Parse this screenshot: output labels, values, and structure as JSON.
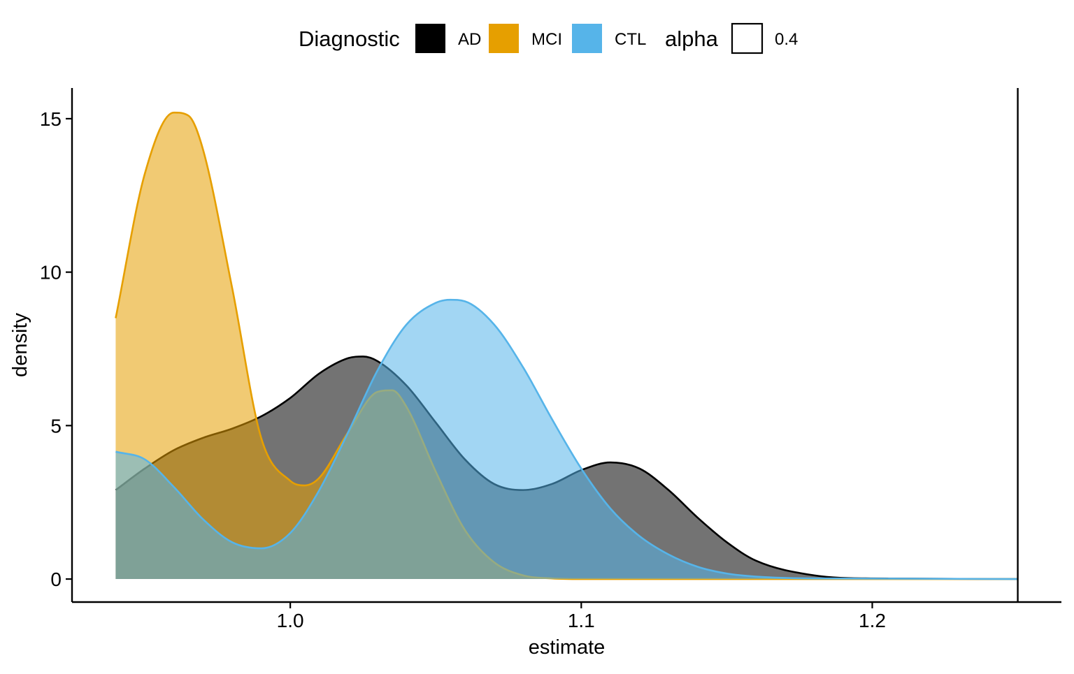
{
  "chart_data": {
    "type": "area",
    "xlabel": "estimate",
    "ylabel": "density",
    "xlim": [
      0.925,
      1.265
    ],
    "ylim": [
      -0.75,
      16.0
    ],
    "x_ticks": [
      {
        "value": 1.0,
        "label": "1.0"
      },
      {
        "value": 1.1,
        "label": "1.1"
      },
      {
        "value": 1.2,
        "label": "1.2"
      }
    ],
    "y_ticks": [
      {
        "value": 0,
        "label": "0"
      },
      {
        "value": 5,
        "label": "5"
      },
      {
        "value": 10,
        "label": "10"
      },
      {
        "value": 15,
        "label": "15"
      }
    ],
    "vline": 1.25,
    "legend": {
      "position": "top",
      "groups": [
        {
          "title": "Diagnostic",
          "items": [
            {
              "label": "AD",
              "color": "#000000"
            },
            {
              "label": "MCI",
              "color": "#E69F00"
            },
            {
              "label": "CTL",
              "color": "#56B4E9"
            }
          ]
        },
        {
          "title": "alpha",
          "items": [
            {
              "label": "0.4",
              "color": "#ffffff"
            }
          ]
        }
      ]
    },
    "fill_alpha": 0.55,
    "series": [
      {
        "name": "AD",
        "color": "#000000",
        "x": [
          0.94,
          0.95,
          0.96,
          0.97,
          0.98,
          0.99,
          1.0,
          1.01,
          1.02,
          1.025,
          1.03,
          1.04,
          1.05,
          1.06,
          1.07,
          1.08,
          1.09,
          1.1,
          1.11,
          1.12,
          1.13,
          1.14,
          1.15,
          1.16,
          1.18,
          1.2,
          1.25
        ],
        "y": [
          2.9,
          3.6,
          4.2,
          4.6,
          4.9,
          5.3,
          5.9,
          6.7,
          7.2,
          7.25,
          7.1,
          6.3,
          5.1,
          3.9,
          3.1,
          2.9,
          3.1,
          3.55,
          3.8,
          3.6,
          2.9,
          2.0,
          1.2,
          0.6,
          0.12,
          0.02,
          0.0
        ]
      },
      {
        "name": "MCI",
        "color": "#E69F00",
        "x": [
          0.94,
          0.95,
          0.96,
          0.965,
          0.97,
          0.98,
          0.99,
          1.0,
          1.005,
          1.01,
          1.02,
          1.03,
          1.035,
          1.04,
          1.05,
          1.06,
          1.07,
          1.08,
          1.09,
          1.1,
          1.25
        ],
        "y": [
          8.5,
          13.2,
          15.2,
          15.1,
          14.0,
          9.5,
          4.6,
          3.2,
          3.05,
          3.3,
          4.8,
          6.1,
          6.15,
          5.6,
          3.5,
          1.6,
          0.55,
          0.12,
          0.02,
          0.0,
          0.0
        ]
      },
      {
        "name": "CTL",
        "color": "#56B4E9",
        "x": [
          0.94,
          0.95,
          0.96,
          0.97,
          0.98,
          0.99,
          1.0,
          1.01,
          1.02,
          1.03,
          1.04,
          1.05,
          1.055,
          1.06,
          1.07,
          1.08,
          1.09,
          1.1,
          1.11,
          1.12,
          1.13,
          1.14,
          1.15,
          1.16,
          1.18,
          1.25
        ],
        "y": [
          4.15,
          3.9,
          3.0,
          1.95,
          1.2,
          1.0,
          1.5,
          2.9,
          4.8,
          6.8,
          8.3,
          9.0,
          9.1,
          9.05,
          8.3,
          6.9,
          5.2,
          3.6,
          2.3,
          1.4,
          0.8,
          0.4,
          0.18,
          0.08,
          0.02,
          0.0
        ]
      }
    ]
  }
}
